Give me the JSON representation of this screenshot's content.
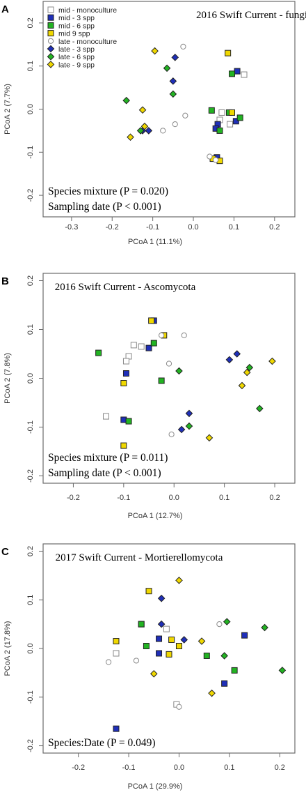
{
  "colors": {
    "mid_monoculture": "#ffffff",
    "mid_3spp": "#1f2fb8",
    "mid_6spp": "#22b322",
    "mid_9spp": "#f0d800",
    "late_monoculture": "#ffffff",
    "late_3spp": "#1f2fb8",
    "late_6spp": "#22b322",
    "late_9spp": "#f0d800",
    "mono_stroke": "#888888",
    "frame": "#6a6a6a"
  },
  "legend_entries": [
    {
      "key": "mid_monoculture",
      "label": "mid - monoculture",
      "shape": "square"
    },
    {
      "key": "mid_3spp",
      "label": "mid - 3 spp",
      "shape": "square"
    },
    {
      "key": "mid_6spp",
      "label": "mid - 6 spp",
      "shape": "square"
    },
    {
      "key": "mid_9spp",
      "label": "mid 9 spp",
      "shape": "square"
    },
    {
      "key": "late_monoculture",
      "label": "late - monoculture",
      "shape": "circle"
    },
    {
      "key": "late_3spp",
      "label": "late - 3 spp",
      "shape": "diamond"
    },
    {
      "key": "late_6spp",
      "label": "late - 6 spp",
      "shape": "diamond"
    },
    {
      "key": "late_9spp",
      "label": "late - 9 spp",
      "shape": "diamond"
    }
  ],
  "chart_data": [
    {
      "type": "scatter",
      "panel_letter": "A",
      "title": "2016 Swift Current - fungi",
      "xlabel": "PCoA 1 (11.1%)",
      "ylabel": "PCoA 2 (7.7%)",
      "xlim": [
        -0.37,
        0.25
      ],
      "ylim": [
        -0.25,
        0.25
      ],
      "xticks": [
        -0.3,
        -0.2,
        -0.1,
        0.0,
        0.1,
        0.2
      ],
      "xtick_labels": [
        "-0.3",
        "-0.2",
        "-0.1",
        "0.0",
        "0.1",
        "0.2"
      ],
      "yticks": [
        -0.2,
        -0.1,
        0.0,
        0.1,
        0.2
      ],
      "ytick_labels": [
        "-0.2",
        "-0.1",
        "0.0",
        "0.1",
        "0.2"
      ],
      "legend": "top-left",
      "annotations": [
        "Species mixture (P = 0.020)",
        "Sampling date (P < 0.001)"
      ],
      "series": [
        {
          "key": "mid_monoculture",
          "x": [
            0.125,
            0.07,
            0.065,
            0.09,
            0.05
          ],
          "y": [
            0.08,
            -0.008,
            -0.025,
            -0.035,
            -0.115
          ]
        },
        {
          "key": "mid_3spp",
          "x": [
            0.108,
            0.105,
            0.06,
            0.055,
            0.058
          ],
          "y": [
            0.088,
            -0.028,
            -0.035,
            -0.045,
            -0.112
          ]
        },
        {
          "key": "mid_6spp",
          "x": [
            0.095,
            0.045,
            0.088,
            0.115,
            0.065
          ],
          "y": [
            0.082,
            -0.003,
            -0.008,
            -0.02,
            -0.05
          ]
        },
        {
          "key": "mid_9spp",
          "x": [
            0.085,
            0.095,
            0.048,
            0.065
          ],
          "y": [
            0.13,
            -0.008,
            -0.115,
            -0.12
          ]
        },
        {
          "key": "late_monoculture",
          "x": [
            -0.025,
            -0.02,
            -0.045,
            -0.075,
            0.04,
            0.055
          ],
          "y": [
            0.145,
            -0.015,
            -0.035,
            -0.05,
            -0.11,
            -0.118
          ]
        },
        {
          "key": "late_3spp",
          "x": [
            -0.045,
            -0.05,
            -0.125,
            -0.11
          ],
          "y": [
            0.12,
            0.065,
            -0.05,
            -0.05
          ]
        },
        {
          "key": "late_6spp",
          "x": [
            -0.065,
            -0.05,
            -0.165,
            -0.13
          ],
          "y": [
            0.095,
            0.035,
            0.02,
            -0.05
          ]
        },
        {
          "key": "late_9spp",
          "x": [
            -0.095,
            -0.125,
            -0.12,
            -0.155
          ],
          "y": [
            0.135,
            -0.002,
            -0.04,
            -0.065
          ]
        }
      ]
    },
    {
      "type": "scatter",
      "panel_letter": "B",
      "title": "2016 Swift Current - Ascomycota",
      "xlabel": "PCoA 1 (12.7%)",
      "ylabel": "PCoA 2 (7.8%)",
      "xlim": [
        -0.26,
        0.24
      ],
      "ylim": [
        -0.215,
        0.215
      ],
      "xticks": [
        -0.2,
        -0.1,
        0.0,
        0.1,
        0.2
      ],
      "xtick_labels": [
        "-0.2",
        "-0.1",
        "0.0",
        "0.1",
        "0.2"
      ],
      "yticks": [
        -0.2,
        -0.1,
        0.0,
        0.1,
        0.2
      ],
      "ytick_labels": [
        "-0.2",
        "-0.1",
        "0.0",
        "0.1",
        "0.2"
      ],
      "legend": "",
      "annotations": [
        "Species mixture (P = 0.011)",
        "Sampling date (P < 0.001)"
      ],
      "series": [
        {
          "key": "mid_monoculture",
          "x": [
            -0.08,
            -0.09,
            -0.095,
            -0.065,
            -0.135
          ],
          "y": [
            0.068,
            0.045,
            0.035,
            0.065,
            -0.078
          ]
        },
        {
          "key": "mid_3spp",
          "x": [
            -0.04,
            -0.05,
            -0.095,
            -0.1
          ],
          "y": [
            0.118,
            0.062,
            0.01,
            -0.085
          ]
        },
        {
          "key": "mid_6spp",
          "x": [
            -0.15,
            -0.04,
            -0.025,
            -0.09
          ],
          "y": [
            0.052,
            0.072,
            -0.005,
            -0.088
          ]
        },
        {
          "key": "mid_9spp",
          "x": [
            -0.045,
            -0.02,
            -0.1,
            -0.1
          ],
          "y": [
            0.118,
            0.088,
            -0.01,
            -0.138
          ]
        },
        {
          "key": "late_monoculture",
          "x": [
            -0.025,
            0.02,
            -0.01,
            -0.005
          ],
          "y": [
            0.088,
            0.088,
            0.03,
            -0.115
          ]
        },
        {
          "key": "late_3spp",
          "x": [
            0.125,
            0.11,
            0.03,
            0.015
          ],
          "y": [
            0.05,
            0.038,
            -0.072,
            -0.105
          ]
        },
        {
          "key": "late_6spp",
          "x": [
            0.01,
            0.15,
            0.17,
            0.03
          ],
          "y": [
            0.015,
            0.022,
            -0.062,
            -0.098
          ]
        },
        {
          "key": "late_9spp",
          "x": [
            0.145,
            0.195,
            0.135,
            0.07
          ],
          "y": [
            0.012,
            0.035,
            -0.015,
            -0.122
          ]
        }
      ]
    },
    {
      "type": "scatter",
      "panel_letter": "C",
      "title": "2017 Swift Current - Mortierellomycota",
      "xlabel": "PCoA 1 (29.9%)",
      "ylabel": "PCoA 2 (17.8%)",
      "xlim": [
        -0.27,
        0.23
      ],
      "ylim": [
        -0.215,
        0.215
      ],
      "xticks": [
        -0.2,
        -0.1,
        0.0,
        0.1,
        0.2
      ],
      "xtick_labels": [
        "-0.2",
        "-0.1",
        "0.0",
        "0.1",
        "0.2"
      ],
      "yticks": [
        -0.2,
        -0.1,
        0.0,
        0.1,
        0.2
      ],
      "ytick_labels": [
        "-0.2",
        "-0.1",
        "0.0",
        "0.1",
        "0.2"
      ],
      "legend": "",
      "annotations": [
        "Species:Date (P = 0.049)"
      ],
      "series": [
        {
          "key": "mid_monoculture",
          "x": [
            -0.025,
            -0.125,
            -0.005
          ],
          "y": [
            0.04,
            -0.01,
            -0.115
          ]
        },
        {
          "key": "mid_3spp",
          "x": [
            -0.075,
            -0.04,
            -0.04,
            0.13,
            0.09,
            -0.125
          ],
          "y": [
            0.05,
            0.02,
            -0.01,
            0.027,
            -0.072,
            -0.165
          ]
        },
        {
          "key": "mid_6spp",
          "x": [
            -0.075,
            -0.065,
            0.055,
            0.11
          ],
          "y": [
            0.05,
            0.005,
            -0.015,
            -0.045
          ]
        },
        {
          "key": "mid_9spp",
          "x": [
            -0.06,
            -0.125,
            -0.015,
            0.0,
            -0.02
          ],
          "y": [
            0.118,
            0.015,
            0.018,
            0.005,
            -0.012
          ]
        },
        {
          "key": "late_monoculture",
          "x": [
            -0.14,
            -0.085,
            0.08,
            -0.0
          ],
          "y": [
            -0.028,
            -0.025,
            0.05,
            -0.12
          ]
        },
        {
          "key": "late_3spp",
          "x": [
            -0.035,
            -0.035,
            0.01
          ],
          "y": [
            0.103,
            0.05,
            0.018
          ]
        },
        {
          "key": "late_6spp",
          "x": [
            0.095,
            0.17,
            0.09,
            0.205
          ],
          "y": [
            0.055,
            0.043,
            -0.015,
            -0.045
          ]
        },
        {
          "key": "late_9spp",
          "x": [
            0.0,
            0.045,
            -0.05,
            0.065
          ],
          "y": [
            0.14,
            0.015,
            -0.052,
            -0.092
          ]
        }
      ]
    }
  ]
}
